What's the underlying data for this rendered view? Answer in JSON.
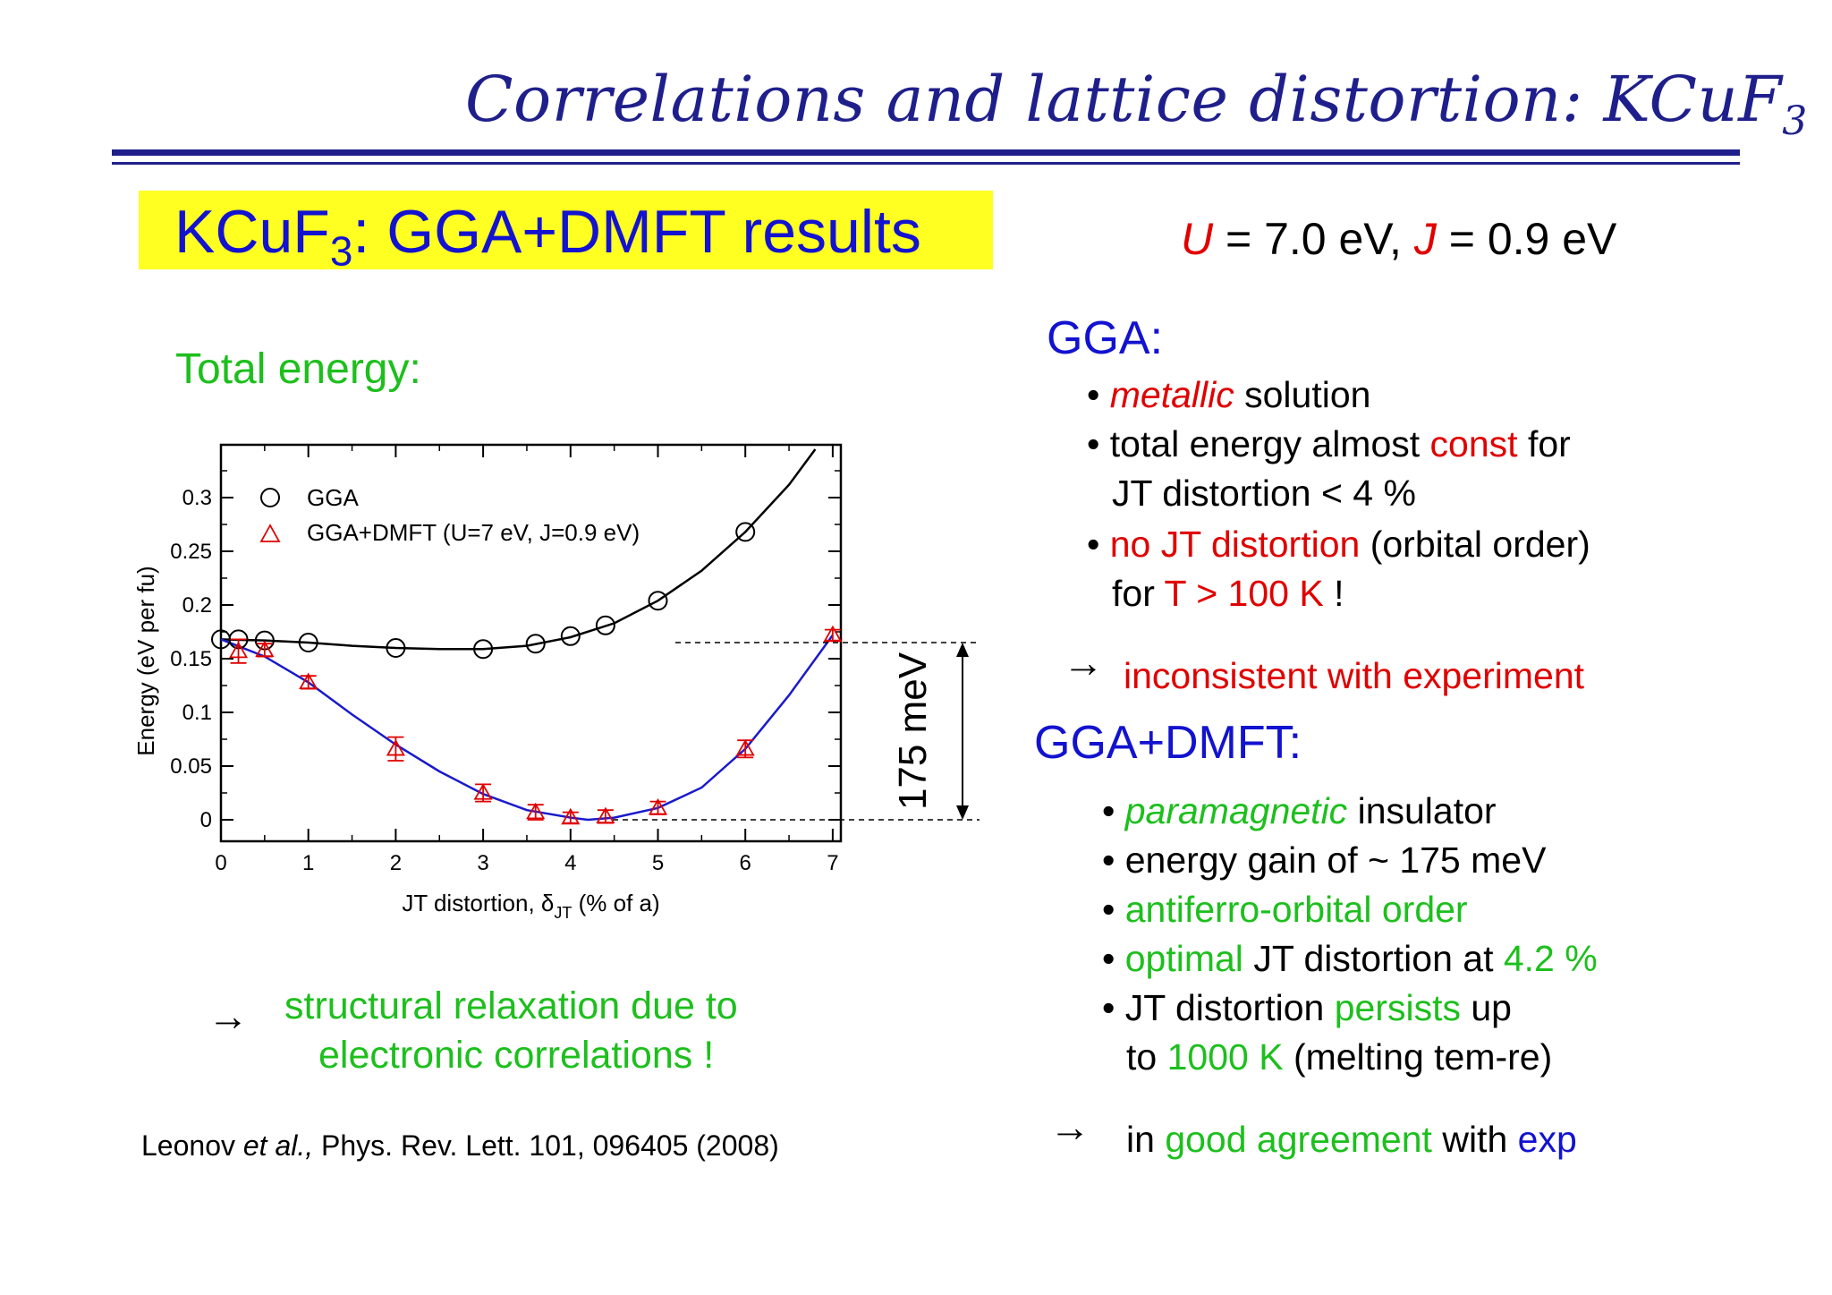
{
  "slide": {
    "title": "Correlations and lattice distortion: KCuF",
    "title_sub": "3",
    "banner_main": "KCuF",
    "banner_sub": "3",
    "banner_rest": ": GGA+DMFT results",
    "params": {
      "U": "U",
      "U_val": " = 7.0 eV, ",
      "J": "J",
      "J_val": " = 0.9 eV"
    },
    "total_energy_label": "Total energy:",
    "conclusion": {
      "arrow": "→",
      "line1": "structural relaxation due to",
      "line2": "electronic correlations !"
    },
    "reference": {
      "author": "Leonov ",
      "etal": "et al.,",
      "rest": " Phys. Rev. Lett. 101, 096405 (2008)"
    }
  },
  "gga": {
    "heading": "GGA:",
    "b1": {
      "bullet": "• ",
      "red": "metallic",
      "rest": " solution"
    },
    "b2": {
      "bullet": "• ",
      "pre": "total energy almost ",
      "red": "const",
      "post": " for",
      "line2": "JT distortion < 4 %"
    },
    "b3": {
      "bullet": "• ",
      "red": "no JT distortion",
      "post": " (orbital order)",
      "l2_pre": "for ",
      "l2_red": "T > 100 K",
      "l2_post": " !"
    },
    "arrow": "→",
    "verdict": "inconsistent with experiment"
  },
  "dmft": {
    "heading": "GGA+DMFT:",
    "b1": {
      "bullet": "• ",
      "green": "paramagnetic",
      "rest": " insulator"
    },
    "b2": {
      "bullet": "• ",
      "text": "energy gain of ~ 175 meV"
    },
    "b3": {
      "bullet": "• ",
      "green": "antiferro-orbital order"
    },
    "b4": {
      "bullet": "• ",
      "green": "optimal",
      "mid": " JT distortion at ",
      "green2": "4.2 %"
    },
    "b5": {
      "bullet": "• ",
      "pre": "JT distortion ",
      "green": "persists",
      "post": " up",
      "l2_pre": "to ",
      "l2_green": "1000 K",
      "l2_post": " (melting tem-re)"
    },
    "arrow": "→",
    "verdict": {
      "pre": "in ",
      "green": "good agreement",
      "mid": " with ",
      "blue": "exp"
    }
  },
  "chart_data": {
    "type": "scatter",
    "xlabel_pre": "JT distortion, ",
    "xlabel_delta": "δ",
    "xlabel_sub": "JT",
    "xlabel_post": " (% of a)",
    "ylabel": "Energy (eV per fu)",
    "xlim": [
      0,
      7
    ],
    "ylim": [
      -0.02,
      0.35
    ],
    "x_ticks": [
      "0",
      "1",
      "2",
      "3",
      "4",
      "5",
      "6",
      "7"
    ],
    "y_ticks": [
      {
        "value": 0,
        "label": "0"
      },
      {
        "value": 0.05,
        "label": "0.05"
      },
      {
        "value": 0.1,
        "label": "0.1"
      },
      {
        "value": 0.15,
        "label": "0.15"
      },
      {
        "value": 0.2,
        "label": "0.2"
      },
      {
        "value": 0.25,
        "label": "0.25"
      },
      {
        "value": 0.3,
        "label": "0.3"
      }
    ],
    "legend_position": "top-left",
    "annotation": "175 meV",
    "annotation_range": [
      0.0,
      0.165
    ],
    "series": [
      {
        "name": "GGA",
        "marker": "circle",
        "color": "#000000",
        "points": [
          [
            0,
            0.168
          ],
          [
            0.2,
            0.168
          ],
          [
            0.5,
            0.167
          ],
          [
            1,
            0.165
          ],
          [
            2,
            0.16
          ],
          [
            3,
            0.159
          ],
          [
            3.6,
            0.164
          ],
          [
            4,
            0.171
          ],
          [
            4.4,
            0.181
          ],
          [
            5,
            0.204
          ],
          [
            6,
            0.268
          ]
        ],
        "fit": [
          [
            0,
            0.168
          ],
          [
            0.5,
            0.167
          ],
          [
            1,
            0.165
          ],
          [
            1.5,
            0.162
          ],
          [
            2,
            0.16
          ],
          [
            2.5,
            0.159
          ],
          [
            3,
            0.159
          ],
          [
            3.5,
            0.162
          ],
          [
            4,
            0.17
          ],
          [
            4.5,
            0.183
          ],
          [
            5,
            0.204
          ],
          [
            5.5,
            0.232
          ],
          [
            6,
            0.268
          ],
          [
            6.5,
            0.312
          ],
          [
            6.8,
            0.345
          ]
        ]
      },
      {
        "name": "GGA+DMFT (U=7 eV, J=0.9 eV)",
        "marker": "triangle",
        "color": "#e00000",
        "fit_color": "#1a1acc",
        "points": [
          [
            0.2,
            0.157,
            0.011
          ],
          [
            0.5,
            0.158,
            0.006
          ],
          [
            1,
            0.128,
            0.006
          ],
          [
            2,
            0.066,
            0.011
          ],
          [
            3,
            0.025,
            0.008
          ],
          [
            3.6,
            0.007,
            0.007
          ],
          [
            4,
            0.002,
            0.005
          ],
          [
            4.4,
            0.003,
            0.006
          ],
          [
            5,
            0.011,
            0.006
          ],
          [
            6,
            0.066,
            0.008
          ],
          [
            7,
            0.172,
            0.005
          ]
        ],
        "fit": [
          [
            0,
            0.168
          ],
          [
            0.5,
            0.152
          ],
          [
            1,
            0.128
          ],
          [
            1.5,
            0.098
          ],
          [
            2,
            0.07
          ],
          [
            2.5,
            0.045
          ],
          [
            3,
            0.024
          ],
          [
            3.5,
            0.009
          ],
          [
            4,
            0.002
          ],
          [
            4.2,
            0.0
          ],
          [
            4.5,
            0.002
          ],
          [
            5,
            0.011
          ],
          [
            5.5,
            0.03
          ],
          [
            6,
            0.066
          ],
          [
            6.5,
            0.116
          ],
          [
            7,
            0.172
          ]
        ]
      }
    ]
  }
}
